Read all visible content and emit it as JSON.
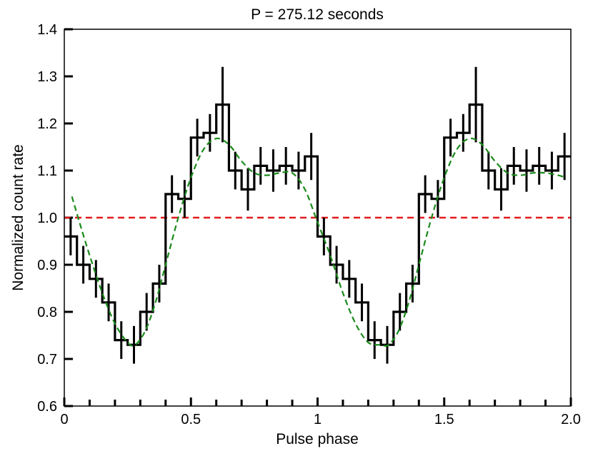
{
  "chart_data": {
    "type": "line",
    "title": "P = 275.12 seconds",
    "xlabel": "Pulse phase",
    "ylabel": "Normalized count rate",
    "xlim": [
      0,
      2.0
    ],
    "ylim": [
      0.6,
      1.4
    ],
    "x_tick_values": [
      0,
      0.5,
      1,
      1.5,
      2.0
    ],
    "x_tick_labels": [
      "0",
      "0.5",
      "1",
      "1.5",
      "2.0"
    ],
    "y_tick_values": [
      0.6,
      0.7,
      0.8,
      0.9,
      1.0,
      1.1,
      1.2,
      1.3,
      1.4
    ],
    "y_tick_labels": [
      "0.6",
      "0.7",
      "0.8",
      "0.9",
      "1.0",
      "1.1",
      "1.2",
      "1.3",
      "1.4"
    ],
    "grid": false,
    "series": [
      {
        "style": "step-histogram",
        "color": "#000000",
        "bin_width": 0.05,
        "x": [
          0.025,
          0.075,
          0.125,
          0.175,
          0.225,
          0.275,
          0.325,
          0.375,
          0.425,
          0.475,
          0.525,
          0.575,
          0.625,
          0.675,
          0.725,
          0.775,
          0.825,
          0.875,
          0.925,
          0.975,
          1.025,
          1.075,
          1.125,
          1.175,
          1.225,
          1.275,
          1.325,
          1.375,
          1.425,
          1.475,
          1.525,
          1.575,
          1.625,
          1.675,
          1.725,
          1.775,
          1.825,
          1.875,
          1.925,
          1.975
        ],
        "y": [
          0.96,
          0.9,
          0.87,
          0.82,
          0.74,
          0.73,
          0.8,
          0.86,
          1.05,
          1.04,
          1.17,
          1.18,
          1.24,
          1.1,
          1.06,
          1.11,
          1.1,
          1.11,
          1.1,
          1.13,
          0.96,
          0.9,
          0.87,
          0.82,
          0.74,
          0.73,
          0.8,
          0.86,
          1.05,
          1.04,
          1.17,
          1.18,
          1.24,
          1.1,
          1.06,
          1.11,
          1.1,
          1.11,
          1.1,
          1.13
        ],
        "y_error": [
          0.04,
          0.04,
          0.04,
          0.04,
          0.04,
          0.04,
          0.04,
          0.04,
          0.04,
          0.04,
          0.04,
          0.04,
          0.08,
          0.04,
          0.045,
          0.04,
          0.045,
          0.04,
          0.04,
          0.05,
          0.04,
          0.04,
          0.04,
          0.04,
          0.04,
          0.04,
          0.04,
          0.04,
          0.04,
          0.04,
          0.04,
          0.04,
          0.08,
          0.04,
          0.045,
          0.04,
          0.045,
          0.04,
          0.04,
          0.05
        ]
      },
      {
        "style": "dashed-curve",
        "color": "#1a8a1a",
        "x": [
          0.03,
          0.06,
          0.1,
          0.15,
          0.2,
          0.25,
          0.28,
          0.32,
          0.36,
          0.4,
          0.45,
          0.5,
          0.55,
          0.6,
          0.65,
          0.7,
          0.75,
          0.8,
          0.85,
          0.9,
          0.95,
          1.0,
          1.05,
          1.1,
          1.15,
          1.2,
          1.25,
          1.28,
          1.32,
          1.36,
          1.4,
          1.45,
          1.5,
          1.55,
          1.6,
          1.65,
          1.7,
          1.75,
          1.8,
          1.85,
          1.9,
          1.95,
          1.98
        ],
        "y": [
          1.045,
          0.99,
          0.92,
          0.84,
          0.775,
          0.735,
          0.73,
          0.76,
          0.82,
          0.9,
          1.0,
          1.085,
          1.145,
          1.168,
          1.155,
          1.12,
          1.095,
          1.09,
          1.095,
          1.095,
          1.06,
          0.99,
          0.92,
          0.84,
          0.775,
          0.735,
          0.73,
          0.73,
          0.76,
          0.82,
          0.9,
          1.0,
          1.085,
          1.145,
          1.168,
          1.155,
          1.12,
          1.095,
          1.09,
          1.095,
          1.095,
          1.09,
          1.085
        ]
      },
      {
        "style": "reference-line",
        "color": "#e31a1c",
        "y_constant": 1.0
      }
    ]
  }
}
